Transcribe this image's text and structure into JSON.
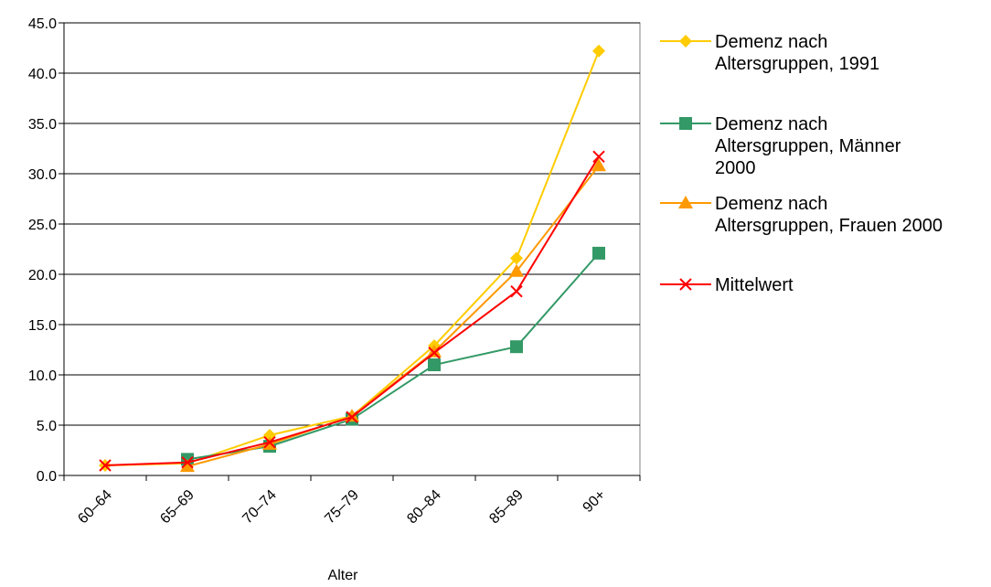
{
  "chart_data": {
    "type": "line",
    "title": "",
    "xlabel": "Alter",
    "ylabel": "",
    "categories": [
      "60–64",
      "65–69",
      "70–74",
      "75–79",
      "80–84",
      "85–89",
      "90+"
    ],
    "ylim": [
      0,
      45
    ],
    "yticks": [
      "0.0",
      "5.0",
      "10.0",
      "15.0",
      "20.0",
      "25.0",
      "30.0",
      "35.0",
      "40.0",
      "45.0"
    ],
    "grid": true,
    "legend_position": "right",
    "series": [
      {
        "name": "Demenz nach Altersgruppen, 1991",
        "legend_lines": [
          "Demenz nach",
          "Altersgruppen, 1991"
        ],
        "color": "#FFCC00",
        "marker": "diamond",
        "values": [
          1.0,
          1.2,
          4.0,
          5.9,
          12.9,
          21.6,
          42.2
        ]
      },
      {
        "name": "Demenz nach Altersgruppen, Männer 2000",
        "legend_lines": [
          "Demenz nach",
          "Altersgruppen, Männer",
          "2000"
        ],
        "color": "#339966",
        "marker": "square",
        "values": [
          null,
          1.6,
          2.9,
          5.6,
          11.0,
          12.8,
          22.1
        ]
      },
      {
        "name": "Demenz nach Altersgruppen, Frauen 2000",
        "legend_lines": [
          "Demenz nach",
          "Altersgruppen, Frauen 2000"
        ],
        "color": "#FF9900",
        "marker": "triangle",
        "values": [
          null,
          0.9,
          3.1,
          5.9,
          12.3,
          20.3,
          30.8
        ]
      },
      {
        "name": "Mittelwert",
        "legend_lines": [
          "Mittelwert"
        ],
        "color": "#FF0000",
        "marker": "x",
        "values": [
          1.0,
          1.3,
          3.3,
          5.8,
          12.2,
          18.3,
          31.7
        ]
      }
    ]
  }
}
